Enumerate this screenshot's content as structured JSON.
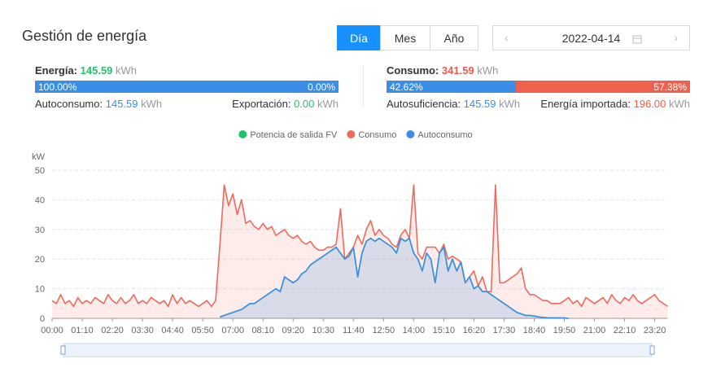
{
  "header": {
    "title": "Gestión de energía",
    "tabs": [
      "Día",
      "Mes",
      "Año"
    ],
    "date": "2022-04-14"
  },
  "summary": {
    "generation": {
      "label": "Energía:",
      "value": "145.59",
      "unit": "kWh",
      "shares": [
        {
          "value": 100,
          "label": "100.00%"
        },
        {
          "value": 0,
          "label": "0.00%"
        }
      ],
      "items": [
        {
          "label": "Autoconsumo:",
          "value": "145.59",
          "unit": "kWh"
        },
        {
          "label": "Exportación:",
          "value": "0.00",
          "unit": "kWh"
        }
      ]
    },
    "consumption": {
      "label": "Consumo:",
      "value": "341.59",
      "unit": "kWh",
      "shares": [
        {
          "value": 42.62,
          "label": "42.62%"
        },
        {
          "value": 57.38,
          "label": "57.38%"
        }
      ],
      "items": [
        {
          "label": "Autosuficiencia:",
          "value": "145.59",
          "unit": "kWh"
        },
        {
          "label": "Energía importada:",
          "value": "196.00",
          "unit": "kWh"
        }
      ]
    }
  },
  "chart_data": {
    "type": "line",
    "y_label": "kW",
    "grid": true,
    "area": true,
    "ylim": [
      0,
      50
    ],
    "yticks": [
      0,
      10,
      20,
      30,
      40,
      50
    ],
    "categories": [
      "00:00",
      null,
      null,
      null,
      null,
      null,
      null,
      "01:10",
      null,
      null,
      null,
      null,
      null,
      null,
      "02:20",
      null,
      null,
      null,
      null,
      null,
      null,
      "03:30",
      null,
      null,
      null,
      null,
      null,
      null,
      "04:40",
      null,
      null,
      null,
      null,
      null,
      null,
      "05:50",
      null,
      null,
      null,
      null,
      null,
      null,
      "07:00",
      null,
      null,
      null,
      null,
      null,
      null,
      "08:10",
      null,
      null,
      null,
      null,
      null,
      null,
      "09:20",
      null,
      null,
      null,
      null,
      null,
      null,
      "10:30",
      null,
      null,
      null,
      null,
      null,
      null,
      "11:40",
      null,
      null,
      null,
      null,
      null,
      null,
      "12:50",
      null,
      null,
      null,
      null,
      null,
      null,
      "14:00",
      null,
      null,
      null,
      null,
      null,
      null,
      "15:10",
      null,
      null,
      null,
      null,
      null,
      null,
      "16:20",
      null,
      null,
      null,
      null,
      null,
      null,
      "17:30",
      null,
      null,
      null,
      null,
      null,
      null,
      "18:40",
      null,
      null,
      null,
      null,
      null,
      null,
      "19:50",
      null,
      null,
      null,
      null,
      null,
      null,
      "21:00",
      null,
      null,
      null,
      null,
      null,
      null,
      "22:10",
      null,
      null,
      null,
      null,
      null,
      null,
      "23:20",
      null,
      null,
      null
    ],
    "series": [
      {
        "name": "Potencia de salida FV",
        "color": "#23c16b",
        "values": [
          null,
          null,
          null,
          null,
          null,
          null,
          null,
          null,
          null,
          null,
          null,
          null,
          null,
          null,
          null,
          null,
          null,
          null,
          null,
          null,
          null,
          null,
          null,
          null,
          null,
          null,
          null,
          null,
          null,
          null,
          null,
          null,
          null,
          null,
          null,
          null,
          null,
          null,
          null,
          0.5,
          1,
          1.5,
          2,
          2.5,
          3,
          4,
          5,
          5,
          6,
          7,
          8,
          9,
          10,
          9,
          14,
          13,
          12,
          13,
          15,
          16,
          18,
          19,
          20,
          21,
          22,
          23,
          24,
          22,
          20,
          21,
          24,
          14,
          22,
          26,
          27,
          26,
          27,
          26,
          25,
          24,
          22,
          27,
          26,
          27,
          22,
          20,
          16,
          22,
          20,
          12,
          22,
          24,
          16,
          20,
          16,
          19,
          12,
          14,
          10,
          11,
          9,
          9,
          8,
          7,
          6,
          5,
          4,
          3,
          2,
          1.5,
          1,
          1,
          0.8,
          0.5,
          0.3,
          0.2,
          0.1,
          0.1,
          0.1,
          0.1,
          0,
          null,
          null,
          null,
          null,
          null,
          null,
          null,
          null,
          null,
          null,
          null,
          null,
          null,
          null,
          null,
          null,
          null,
          null,
          null,
          null,
          null,
          null,
          null
        ]
      },
      {
        "name": "Consumo",
        "color": "#ee6a5b",
        "values": [
          6,
          5,
          8,
          5,
          6,
          4,
          7,
          5,
          6,
          5,
          7,
          6,
          5,
          8,
          6,
          5,
          7,
          5,
          6,
          8,
          5,
          6,
          5,
          7,
          6,
          5,
          6,
          4,
          8,
          5,
          7,
          5,
          6,
          5,
          4,
          5,
          6,
          4,
          6,
          25,
          45,
          38,
          42,
          35,
          40,
          32,
          33,
          31,
          30,
          32,
          30,
          31,
          28,
          29,
          30,
          28,
          27,
          28,
          26,
          25,
          26,
          24,
          23,
          23,
          24,
          24,
          25,
          37,
          20,
          22,
          24,
          28,
          25,
          30,
          33,
          28,
          30,
          28,
          27,
          25,
          24,
          28,
          30,
          27,
          45,
          22,
          20,
          24,
          24,
          24,
          22,
          25,
          20,
          21,
          20,
          19,
          12,
          14,
          16,
          11,
          14,
          9,
          9,
          45,
          12,
          12,
          13,
          14,
          15,
          17,
          10,
          8,
          8,
          7,
          6,
          6,
          5,
          5,
          5,
          6,
          7,
          5,
          6,
          4,
          7,
          6,
          5,
          6,
          7,
          5,
          8,
          6,
          5,
          7,
          6,
          8,
          6,
          5,
          6,
          7,
          8,
          6,
          5,
          4
        ]
      },
      {
        "name": "Autoconsumo",
        "color": "#3b8ee8",
        "values": [
          null,
          null,
          null,
          null,
          null,
          null,
          null,
          null,
          null,
          null,
          null,
          null,
          null,
          null,
          null,
          null,
          null,
          null,
          null,
          null,
          null,
          null,
          null,
          null,
          null,
          null,
          null,
          null,
          null,
          null,
          null,
          null,
          null,
          null,
          null,
          null,
          null,
          null,
          null,
          0.5,
          1,
          1.5,
          2,
          2.5,
          3,
          4,
          5,
          5,
          6,
          7,
          8,
          9,
          10,
          9,
          14,
          13,
          12,
          13,
          15,
          16,
          18,
          19,
          20,
          21,
          22,
          23,
          24,
          22,
          20,
          21,
          24,
          14,
          22,
          26,
          27,
          26,
          27,
          26,
          25,
          24,
          22,
          27,
          26,
          27,
          22,
          20,
          16,
          22,
          20,
          12,
          22,
          24,
          16,
          20,
          16,
          19,
          12,
          14,
          10,
          11,
          9,
          9,
          8,
          7,
          6,
          5,
          4,
          3,
          2,
          1.5,
          1,
          1,
          0.8,
          0.5,
          0.3,
          0.2,
          0.1,
          0.1,
          0.1,
          0.1,
          0,
          null,
          null,
          null,
          null,
          null,
          null,
          null,
          null,
          null,
          null,
          null,
          null,
          null,
          null,
          null,
          null,
          null,
          null,
          null,
          null,
          null,
          null,
          null
        ]
      }
    ]
  }
}
